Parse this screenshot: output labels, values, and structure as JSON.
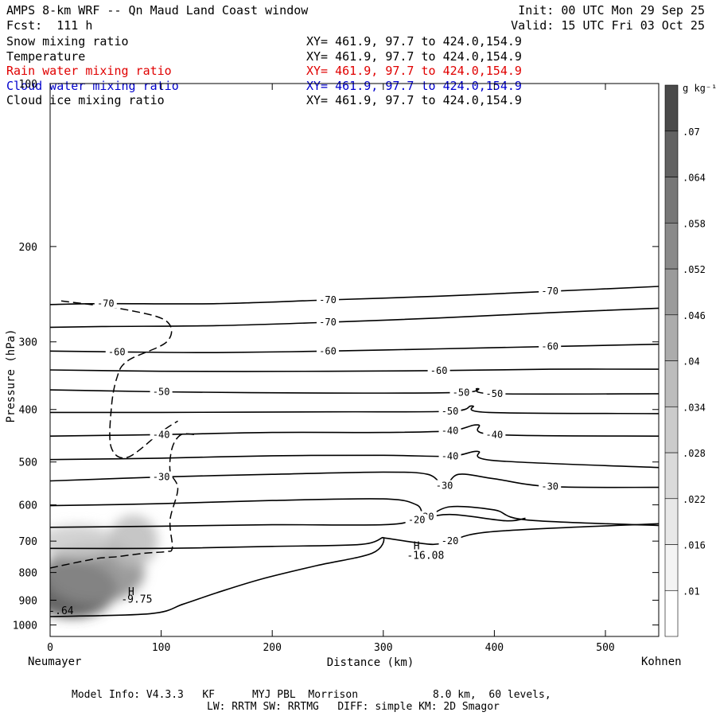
{
  "header": {
    "title": "AMPS 8-km WRF -- Qn Maud Land Coast window",
    "fcst": "Fcst:  111 h",
    "init": "Init: 00 UTC Mon 29 Sep 25",
    "valid": "Valid: 15 UTC Fri 03 Oct 25"
  },
  "legend_fields": [
    {
      "name": "Snow mixing ratio",
      "xy": "XY= 461.9, 97.7 to 424.0,154.9",
      "color": "#000000"
    },
    {
      "name": "Temperature",
      "xy": "XY= 461.9, 97.7 to 424.0,154.9",
      "color": "#000000"
    },
    {
      "name": "Rain water mixing ratio",
      "xy": "XY= 461.9, 97.7 to 424.0,154.9",
      "color": "#e00000"
    },
    {
      "name": "Cloud water mixing ratio",
      "xy": "XY= 461.9, 97.7 to 424.0,154.9",
      "color": "#0000cc"
    },
    {
      "name": "Cloud ice mixing ratio",
      "xy": "XY= 461.9, 97.7 to 424.0,154.9",
      "color": "#000000"
    }
  ],
  "x_end_labels": {
    "left": "Neumayer",
    "right": "Kohnen"
  },
  "footer": {
    "line1": "Model Info: V4.3.3   KF      MYJ PBL  Morrison            8.0 km,  60 levels,",
    "line2": "LW: RRTM SW: RRTMG   DIFF: simple KM: 2D Smagor"
  },
  "colorbar": {
    "unit": "g kg⁻¹",
    "levels": [
      ".01",
      ".016",
      ".022",
      ".028",
      ".034",
      ".04",
      ".046",
      ".052",
      ".058",
      ".064",
      ".07"
    ],
    "colors": [
      "#ffffff",
      "#f4f4f4",
      "#e8e8e8",
      "#dadada",
      "#cbcbcb",
      "#bcbcbc",
      "#acacac",
      "#9b9b9b",
      "#8a8a8a",
      "#777777",
      "#626262",
      "#4a4a4a"
    ]
  },
  "chart_data": {
    "type": "contour",
    "xlabel": "Distance (km)",
    "ylabel": "Pressure (hPa)",
    "xlim": [
      0,
      548
    ],
    "ylim": [
      1050,
      100
    ],
    "y_scale": "log",
    "xticks": [
      0,
      100,
      200,
      300,
      400,
      500
    ],
    "yticks": [
      100,
      200,
      300,
      400,
      500,
      600,
      700,
      800,
      900,
      1000
    ],
    "temperature_contours": [
      {
        "level": -70,
        "points": [
          [
            0,
            256
          ],
          [
            50,
            255
          ],
          [
            150,
            255
          ],
          [
            250,
            251
          ],
          [
            350,
            247
          ],
          [
            450,
            242
          ],
          [
            548,
            237
          ]
        ]
      },
      {
        "level": -70,
        "points": [
          [
            0,
            282
          ],
          [
            50,
            281
          ],
          [
            150,
            280
          ],
          [
            250,
            276
          ],
          [
            350,
            271
          ],
          [
            450,
            265
          ],
          [
            548,
            260
          ]
        ]
      },
      {
        "level": -60,
        "points": [
          [
            0,
            312
          ],
          [
            60,
            313
          ],
          [
            150,
            314
          ],
          [
            250,
            312
          ],
          [
            350,
            309
          ],
          [
            450,
            306
          ],
          [
            548,
            303
          ]
        ]
      },
      {
        "level": -60,
        "points": [
          [
            0,
            338
          ],
          [
            100,
            340
          ],
          [
            250,
            340
          ],
          [
            350,
            339
          ],
          [
            450,
            337
          ],
          [
            548,
            337
          ]
        ]
      },
      {
        "level": -50,
        "points": [
          [
            0,
            368
          ],
          [
            100,
            371
          ],
          [
            250,
            373
          ],
          [
            370,
            372
          ],
          [
            385,
            366
          ],
          [
            400,
            374
          ],
          [
            548,
            374
          ]
        ]
      },
      {
        "level": -50,
        "points": [
          [
            0,
            405
          ],
          [
            100,
            405
          ],
          [
            250,
            404
          ],
          [
            360,
            403
          ],
          [
            380,
            394
          ],
          [
            395,
            405
          ],
          [
            548,
            407
          ]
        ]
      },
      {
        "level": -40,
        "points": [
          [
            0,
            448
          ],
          [
            100,
            445
          ],
          [
            200,
            441
          ],
          [
            300,
            441
          ],
          [
            360,
            438
          ],
          [
            385,
            427
          ],
          [
            400,
            445
          ],
          [
            548,
            448
          ]
        ]
      },
      {
        "level": -40,
        "points": [
          [
            0,
            495
          ],
          [
            100,
            492
          ],
          [
            200,
            487
          ],
          [
            300,
            486
          ],
          [
            360,
            488
          ],
          [
            385,
            478
          ],
          [
            400,
            497
          ],
          [
            548,
            512
          ]
        ]
      },
      {
        "level": -30,
        "points": [
          [
            0,
            542
          ],
          [
            100,
            533
          ],
          [
            200,
            527
          ],
          [
            300,
            522
          ],
          [
            340,
            527
          ],
          [
            355,
            553
          ],
          [
            368,
            527
          ],
          [
            400,
            537
          ],
          [
            450,
            555
          ],
          [
            548,
            557
          ]
        ]
      },
      {
        "level": -30,
        "points": [
          [
            0,
            602
          ],
          [
            100,
            597
          ],
          [
            200,
            589
          ],
          [
            300,
            585
          ],
          [
            330,
            600
          ],
          [
            338,
            631
          ],
          [
            360,
            605
          ],
          [
            400,
            613
          ],
          [
            430,
            640
          ],
          [
            548,
            655
          ]
        ]
      },
      {
        "level": -20,
        "points": [
          [
            0,
            660
          ],
          [
            100,
            657
          ],
          [
            200,
            653
          ],
          [
            300,
            653
          ],
          [
            330,
            640
          ],
          [
            360,
            625
          ],
          [
            410,
            642
          ],
          [
            428,
            635
          ]
        ]
      },
      {
        "level": -20,
        "points": [
          [
            0,
            722
          ],
          [
            100,
            722
          ],
          [
            200,
            716
          ],
          [
            280,
            710
          ],
          [
            300,
            690
          ],
          [
            290,
            737
          ],
          [
            240,
            777
          ],
          [
            190,
            823
          ],
          [
            150,
            872
          ],
          [
            120,
            915
          ],
          [
            90,
            953
          ],
          [
            0,
            965
          ]
        ]
      },
      {
        "level": -20,
        "points": [
          [
            300,
            690
          ],
          [
            320,
            700
          ],
          [
            345,
            710
          ],
          [
            360,
            700
          ],
          [
            400,
            672
          ],
          [
            548,
            650
          ]
        ]
      }
    ],
    "snow_contour": {
      "style": "dashed",
      "points": [
        [
          0,
          785
        ],
        [
          40,
          755
        ],
        [
          60,
          748
        ],
        [
          85,
          737
        ],
        [
          104,
          732
        ],
        [
          110,
          720
        ],
        [
          108,
          640
        ],
        [
          115,
          560
        ],
        [
          108,
          520
        ],
        [
          110,
          470
        ],
        [
          118,
          445
        ],
        [
          130,
          445
        ]
      ]
    },
    "ice_contour": {
      "style": "dashed",
      "points": [
        [
          10,
          252
        ],
        [
          70,
          262
        ],
        [
          105,
          275
        ],
        [
          105,
          300
        ],
        [
          70,
          325
        ],
        [
          60,
          350
        ],
        [
          55,
          400
        ],
        [
          55,
          470
        ],
        [
          70,
          490
        ],
        [
          100,
          440
        ],
        [
          115,
          420
        ]
      ]
    },
    "snow_shading": [
      {
        "x": 20,
        "p": 860,
        "rx": 40,
        "ry": 0.12,
        "value": 0.07
      },
      {
        "x": 40,
        "p": 800,
        "rx": 45,
        "ry": 0.13,
        "value": 0.05
      },
      {
        "x": 25,
        "p": 700,
        "rx": 35,
        "ry": 0.07,
        "value": 0.028
      },
      {
        "x": 75,
        "p": 700,
        "rx": 22,
        "ry": 0.11,
        "value": 0.03
      }
    ],
    "annotations": [
      {
        "text": "H",
        "x": 73,
        "p": 880
      },
      {
        "text": "-9.75",
        "x": 78,
        "p": 910
      },
      {
        "text": "H",
        "x": 330,
        "p": 725
      },
      {
        "text": "-16.08",
        "x": 338,
        "p": 755
      },
      {
        "text": "-.64",
        "x": 10,
        "p": 955
      }
    ]
  }
}
